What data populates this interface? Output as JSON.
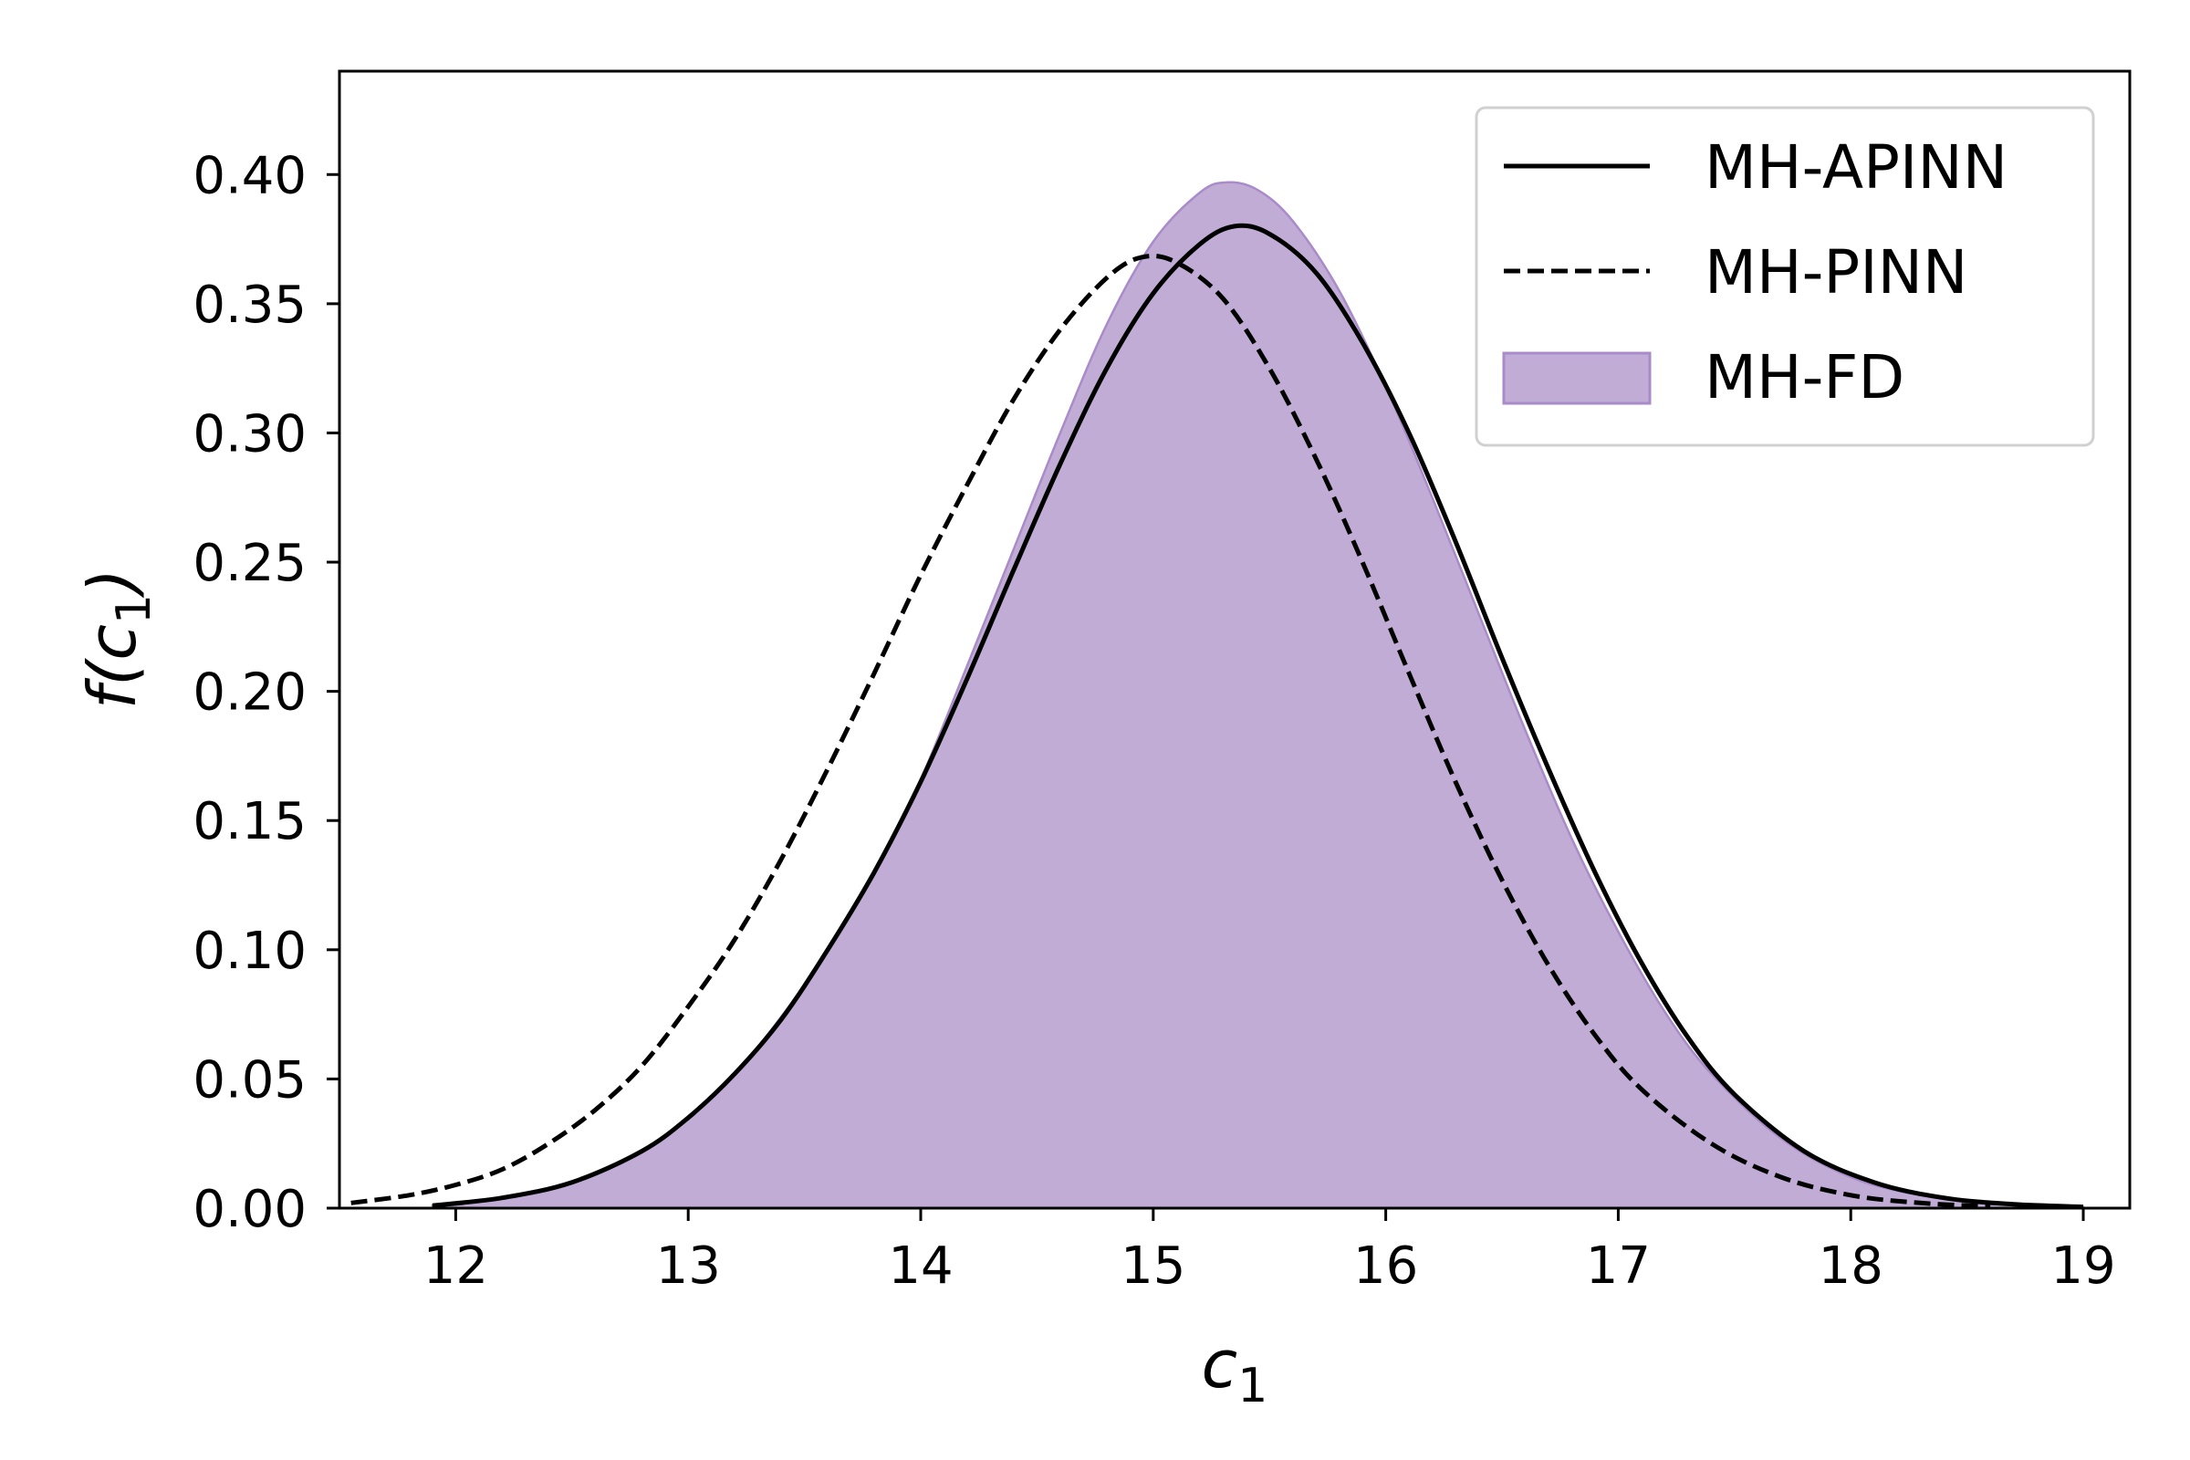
{
  "chart_data": {
    "type": "line",
    "xlabel": {
      "main": "c",
      "sub": "1"
    },
    "ylabel": {
      "pre": "f(",
      "main": "c",
      "sub": "1",
      "post": ")"
    },
    "xlim": [
      11.5,
      19.2
    ],
    "ylim": [
      0.0,
      0.44
    ],
    "xticks": [
      12,
      13,
      14,
      15,
      16,
      17,
      18,
      19
    ],
    "yticks": [
      0.0,
      0.05,
      0.1,
      0.15,
      0.2,
      0.25,
      0.3,
      0.35,
      0.4
    ],
    "ytick_labels": [
      "0.00",
      "0.05",
      "0.10",
      "0.15",
      "0.20",
      "0.25",
      "0.30",
      "0.35",
      "0.40"
    ],
    "xtick_labels": [
      "12",
      "13",
      "14",
      "15",
      "16",
      "17",
      "18",
      "19"
    ],
    "grid": false,
    "legend_position": "top-right",
    "series": [
      {
        "name": "MH-APINN",
        "style": "solid",
        "color": "#000000",
        "x": [
          11.9,
          12.2,
          12.5,
          12.8,
          13.0,
          13.2,
          13.4,
          13.6,
          13.8,
          14.0,
          14.2,
          14.4,
          14.6,
          14.8,
          15.0,
          15.2,
          15.35,
          15.5,
          15.7,
          15.9,
          16.1,
          16.3,
          16.5,
          16.7,
          16.9,
          17.1,
          17.3,
          17.5,
          17.8,
          18.1,
          18.4,
          18.7,
          19.0
        ],
        "y": [
          0.001,
          0.004,
          0.01,
          0.022,
          0.035,
          0.052,
          0.073,
          0.1,
          0.13,
          0.165,
          0.205,
          0.247,
          0.288,
          0.325,
          0.354,
          0.373,
          0.38,
          0.377,
          0.362,
          0.335,
          0.3,
          0.258,
          0.213,
          0.17,
          0.13,
          0.095,
          0.066,
          0.044,
          0.022,
          0.01,
          0.004,
          0.0015,
          0.0005
        ]
      },
      {
        "name": "MH-PINN",
        "style": "dashed",
        "color": "#000000",
        "x": [
          11.55,
          11.8,
          12.0,
          12.2,
          12.4,
          12.6,
          12.8,
          13.0,
          13.2,
          13.4,
          13.6,
          13.8,
          14.0,
          14.2,
          14.4,
          14.6,
          14.8,
          14.95,
          15.1,
          15.3,
          15.5,
          15.7,
          15.9,
          16.1,
          16.3,
          16.5,
          16.7,
          16.9,
          17.1,
          17.4,
          17.7,
          18.0,
          18.3,
          18.6
        ],
        "y": [
          0.002,
          0.005,
          0.009,
          0.015,
          0.025,
          0.038,
          0.055,
          0.078,
          0.104,
          0.135,
          0.17,
          0.207,
          0.245,
          0.28,
          0.313,
          0.34,
          0.36,
          0.368,
          0.366,
          0.352,
          0.325,
          0.29,
          0.25,
          0.207,
          0.165,
          0.127,
          0.094,
          0.067,
          0.046,
          0.025,
          0.012,
          0.005,
          0.002,
          0.0006
        ]
      },
      {
        "name": "MH-FD",
        "style": "filled",
        "color": "#c1acd6",
        "edge_color": "#a98bc9",
        "x": [
          11.9,
          12.2,
          12.5,
          12.8,
          13.0,
          13.2,
          13.4,
          13.6,
          13.8,
          14.0,
          14.2,
          14.4,
          14.6,
          14.8,
          15.0,
          15.2,
          15.32,
          15.45,
          15.6,
          15.8,
          16.0,
          16.2,
          16.4,
          16.6,
          16.8,
          17.0,
          17.2,
          17.4,
          17.7,
          18.0,
          18.3,
          18.6,
          19.0
        ],
        "y": [
          0.001,
          0.004,
          0.01,
          0.022,
          0.035,
          0.052,
          0.074,
          0.1,
          0.13,
          0.166,
          0.21,
          0.255,
          0.3,
          0.342,
          0.374,
          0.393,
          0.397,
          0.394,
          0.382,
          0.355,
          0.318,
          0.275,
          0.23,
          0.185,
          0.143,
          0.107,
          0.076,
          0.052,
          0.027,
          0.012,
          0.005,
          0.002,
          0.0004
        ]
      }
    ]
  }
}
